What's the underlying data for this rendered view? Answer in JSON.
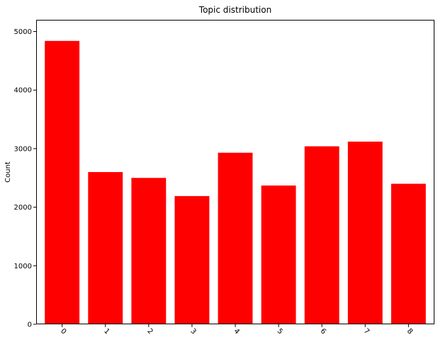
{
  "chart_data": {
    "type": "bar",
    "title": "Topic distribution",
    "xlabel": "",
    "ylabel": "Count",
    "categories": [
      "0",
      "1",
      "2",
      "3",
      "4",
      "5",
      "6",
      "7",
      "8"
    ],
    "values": [
      4840,
      2600,
      2500,
      2190,
      2930,
      2370,
      3040,
      3120,
      2400
    ],
    "ylim": [
      0,
      5200
    ],
    "yticks": [
      "0",
      "1000",
      "2000",
      "3000",
      "4000",
      "5000"
    ],
    "x_tick_rotation_deg": 45,
    "bar_color": "#ff0000",
    "grid": false,
    "legend": "none"
  }
}
